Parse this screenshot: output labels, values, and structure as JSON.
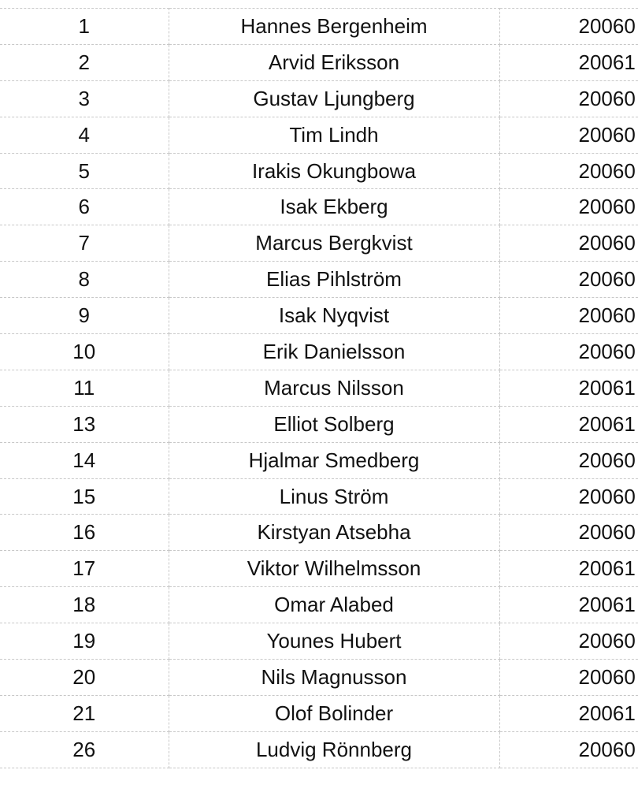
{
  "rows": [
    {
      "number": "1",
      "name": "Hannes Bergenheim",
      "date": "20060"
    },
    {
      "number": "2",
      "name": "Arvid Eriksson",
      "date": "20061"
    },
    {
      "number": "3",
      "name": "Gustav Ljungberg",
      "date": "20060"
    },
    {
      "number": "4",
      "name": "Tim Lindh",
      "date": "20060"
    },
    {
      "number": "5",
      "name": "Irakis Okungbowa",
      "date": "20060"
    },
    {
      "number": "6",
      "name": "Isak Ekberg",
      "date": "20060"
    },
    {
      "number": "7",
      "name": "Marcus Bergkvist",
      "date": "20060"
    },
    {
      "number": "8",
      "name": "Elias Pihlström",
      "date": "20060"
    },
    {
      "number": "9",
      "name": "Isak Nyqvist",
      "date": "20060"
    },
    {
      "number": "10",
      "name": "Erik Danielsson",
      "date": "20060"
    },
    {
      "number": "11",
      "name": "Marcus Nilsson",
      "date": "20061"
    },
    {
      "number": "13",
      "name": "Elliot Solberg",
      "date": "20061"
    },
    {
      "number": "14",
      "name": "Hjalmar Smedberg",
      "date": "20060"
    },
    {
      "number": "15",
      "name": "Linus Ström",
      "date": "20060"
    },
    {
      "number": "16",
      "name": "Kirstyan Atsebha",
      "date": "20060"
    },
    {
      "number": "17",
      "name": "Viktor Wilhelmsson",
      "date": "20061"
    },
    {
      "number": "18",
      "name": "Omar Alabed",
      "date": "20061"
    },
    {
      "number": "19",
      "name": "Younes Hubert",
      "date": "20060"
    },
    {
      "number": "20",
      "name": "Nils Magnusson",
      "date": "20060"
    },
    {
      "number": "21",
      "name": "Olof Bolinder",
      "date": "20061"
    },
    {
      "number": "26",
      "name": "Ludvig Rönnberg",
      "date": "20060"
    }
  ]
}
